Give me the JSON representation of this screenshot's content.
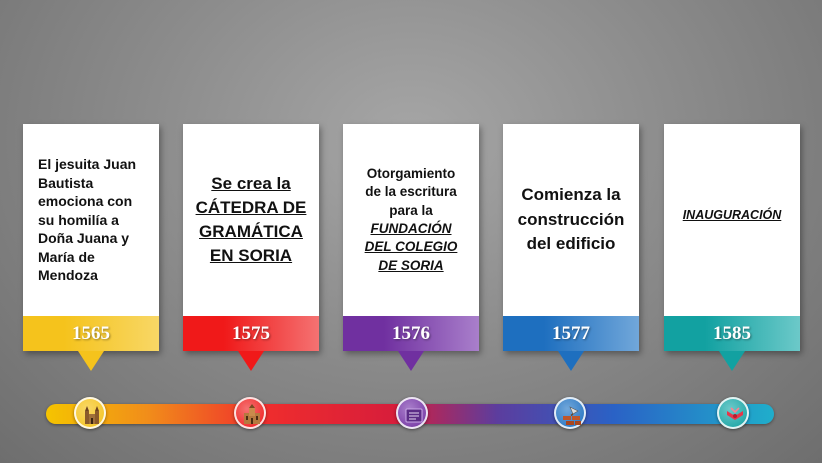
{
  "events": [
    {
      "year": "1565",
      "color": "#f5c31c",
      "color_light": "#f8d766",
      "lines": [
        "El jesuita Juan",
        "Bautista",
        "emociona con",
        "su homilía a",
        "Doña Juana y",
        "María de",
        "Mendoza"
      ],
      "icon": "cathedral-icon"
    },
    {
      "year": "1575",
      "color": "#f01919",
      "color_light": "#f47272",
      "lines": [
        "Se crea la",
        "CÁTEDRA DE",
        "GRAMÁTICA",
        "EN SORIA"
      ],
      "icon": "church-icon"
    },
    {
      "year": "1576",
      "color": "#7030a0",
      "color_light": "#a97fcb",
      "lines": [
        "Otorgamiento",
        "de la escritura",
        "para la"
      ],
      "emphasis_lines": [
        "FUNDACIÓN",
        "DEL COLEGIO",
        "DE SORIA"
      ],
      "icon": "document-icon"
    },
    {
      "year": "1577",
      "color": "#1e6fbf",
      "color_light": "#71a7da",
      "lines": [
        "Comienza la",
        "construcción",
        "del edificio"
      ],
      "icon": "bricks-trowel-icon"
    },
    {
      "year": "1585",
      "color": "#12a1a1",
      "color_light": "#6cc9c9",
      "lines": [
        "INAUGURACIÓN"
      ],
      "icon": "ribbon-icon"
    }
  ],
  "timeline": {
    "gradient_colors": [
      "#f5c400",
      "#f18d1a",
      "#ef2d2d",
      "#d71d3b",
      "#5c3d9e",
      "#2a62c6",
      "#1faecb"
    ]
  }
}
